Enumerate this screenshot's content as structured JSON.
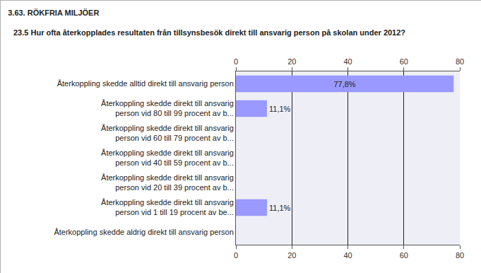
{
  "chart_data": {
    "type": "bar",
    "orientation": "horizontal",
    "title": "3.63. RÖKFRIA MILJÖER",
    "subtitle": "23.5 Hur ofta återkopplades resultaten från tillsynsbesök direkt till ansvarig person på skolan under 2012?",
    "categories": [
      "Återkoppling skedde alltid direkt till ansvarig person",
      "Återkoppling skedde direkt till ansvarig\nperson vid 80 till 99 procent av b...",
      "Återkoppling skedde direkt till ansvarig\nperson vid 60 till 79 procent av b...",
      "Återkoppling skedde direkt till ansvarig\nperson vid 40 till 59 procent av b...",
      "Återkoppling skedde direkt till ansvarig\nperson vid 20 till 39 procent av b...",
      "Återkoppling skedde direkt till ansvarig\nperson vid 1 till 19 procent av be...",
      "Återkoppling skedde aldrig direkt till ansvarig person"
    ],
    "values": [
      77.8,
      11.1,
      0,
      0,
      0,
      11.1,
      0
    ],
    "value_labels": [
      "77,8%",
      "11,1%",
      null,
      null,
      null,
      "11,1%",
      null
    ],
    "color": "#9999ff",
    "xlim": [
      0,
      80
    ],
    "xticks": [
      0,
      20,
      40,
      60,
      80
    ],
    "grid": true,
    "data_labels": true
  }
}
